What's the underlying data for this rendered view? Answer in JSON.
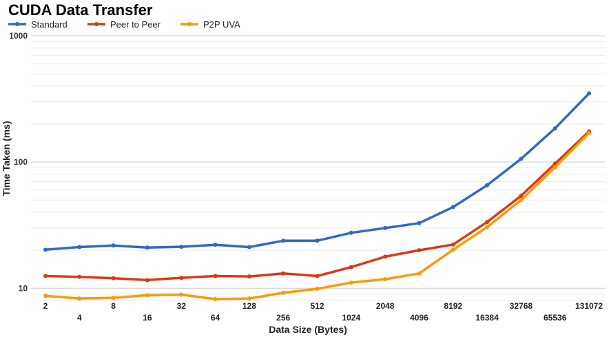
{
  "chart_data": {
    "type": "line",
    "title": "CUDA Data Transfer",
    "xlabel": "Data Size (Bytes)",
    "ylabel": "Time Taken (ms)",
    "y_scale": "log",
    "ylim": [
      8,
      1000
    ],
    "y_ticks": [
      10,
      100,
      1000
    ],
    "y_tick_labels": [
      "10",
      "100",
      "1000"
    ],
    "grid": true,
    "legend_position": "top-left",
    "categories": [
      "2",
      "4",
      "8",
      "16",
      "32",
      "64",
      "128",
      "256",
      "512",
      "1024",
      "2048",
      "4096",
      "8192",
      "16384",
      "32768",
      "65536",
      "131072"
    ],
    "series": [
      {
        "name": "Standard",
        "color": "#3366cc",
        "values": [
          20.2,
          21.2,
          21.8,
          21.0,
          21.3,
          22.1,
          21.2,
          23.8,
          23.8,
          27.5,
          30.0,
          32.8,
          44.0,
          65.5,
          106.0,
          185.0,
          350.0
        ]
      },
      {
        "name": "Peer to Peer",
        "color": "#dc3912",
        "values": [
          12.5,
          12.3,
          12.0,
          11.6,
          12.1,
          12.5,
          12.4,
          13.1,
          12.5,
          14.7,
          17.8,
          20.0,
          22.2,
          33.5,
          54.0,
          97.0,
          175.0
        ]
      },
      {
        "name": "P2P UVA",
        "color": "#ff9900",
        "values": [
          8.7,
          8.3,
          8.4,
          8.8,
          8.9,
          8.2,
          8.3,
          9.2,
          9.9,
          11.1,
          11.8,
          13.1,
          20.2,
          30.5,
          50.0,
          91.0,
          170.0
        ]
      }
    ]
  }
}
